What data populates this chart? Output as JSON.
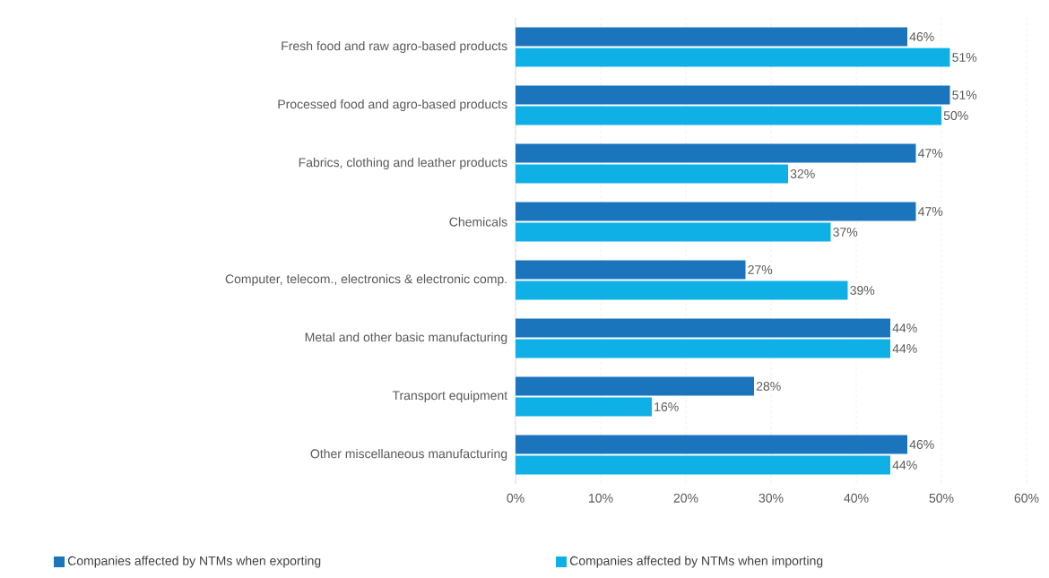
{
  "chart_data": {
    "type": "bar",
    "orientation": "horizontal",
    "categories": [
      "Fresh food and raw agro-based products",
      "Processed food and agro-based products",
      "Fabrics, clothing and leather products",
      "Chemicals",
      "Computer, telecom., electronics & electronic comp.",
      "Metal and other basic manufacturing",
      "Transport equipment",
      "Other miscellaneous manufacturing"
    ],
    "series": [
      {
        "name": "Companies affected by  NTMs when exporting",
        "color": "#1b75bc",
        "values": [
          46,
          51,
          47,
          47,
          27,
          44,
          28,
          46
        ],
        "value_labels": [
          "46%",
          "51%",
          "47%",
          "47%",
          "27%",
          "44%",
          "28%",
          "46%"
        ]
      },
      {
        "name": "Companies affected by  NTMs when importing",
        "color": "#0fb0e6",
        "values": [
          51,
          50,
          32,
          37,
          39,
          44,
          16,
          44
        ],
        "value_labels": [
          "51%",
          "50%",
          "32%",
          "37%",
          "39%",
          "44%",
          "16%",
          "44%"
        ]
      }
    ],
    "xlim": [
      0,
      60
    ],
    "xticks": [
      {
        "value": 0,
        "label": "0%"
      },
      {
        "value": 10,
        "label": "10%"
      },
      {
        "value": 20,
        "label": "20%"
      },
      {
        "value": 30,
        "label": "30%"
      },
      {
        "value": 40,
        "label": "40%"
      },
      {
        "value": 50,
        "label": "50%"
      },
      {
        "value": 60,
        "label": "60%"
      }
    ],
    "grid": "x",
    "legend": "bottom"
  }
}
